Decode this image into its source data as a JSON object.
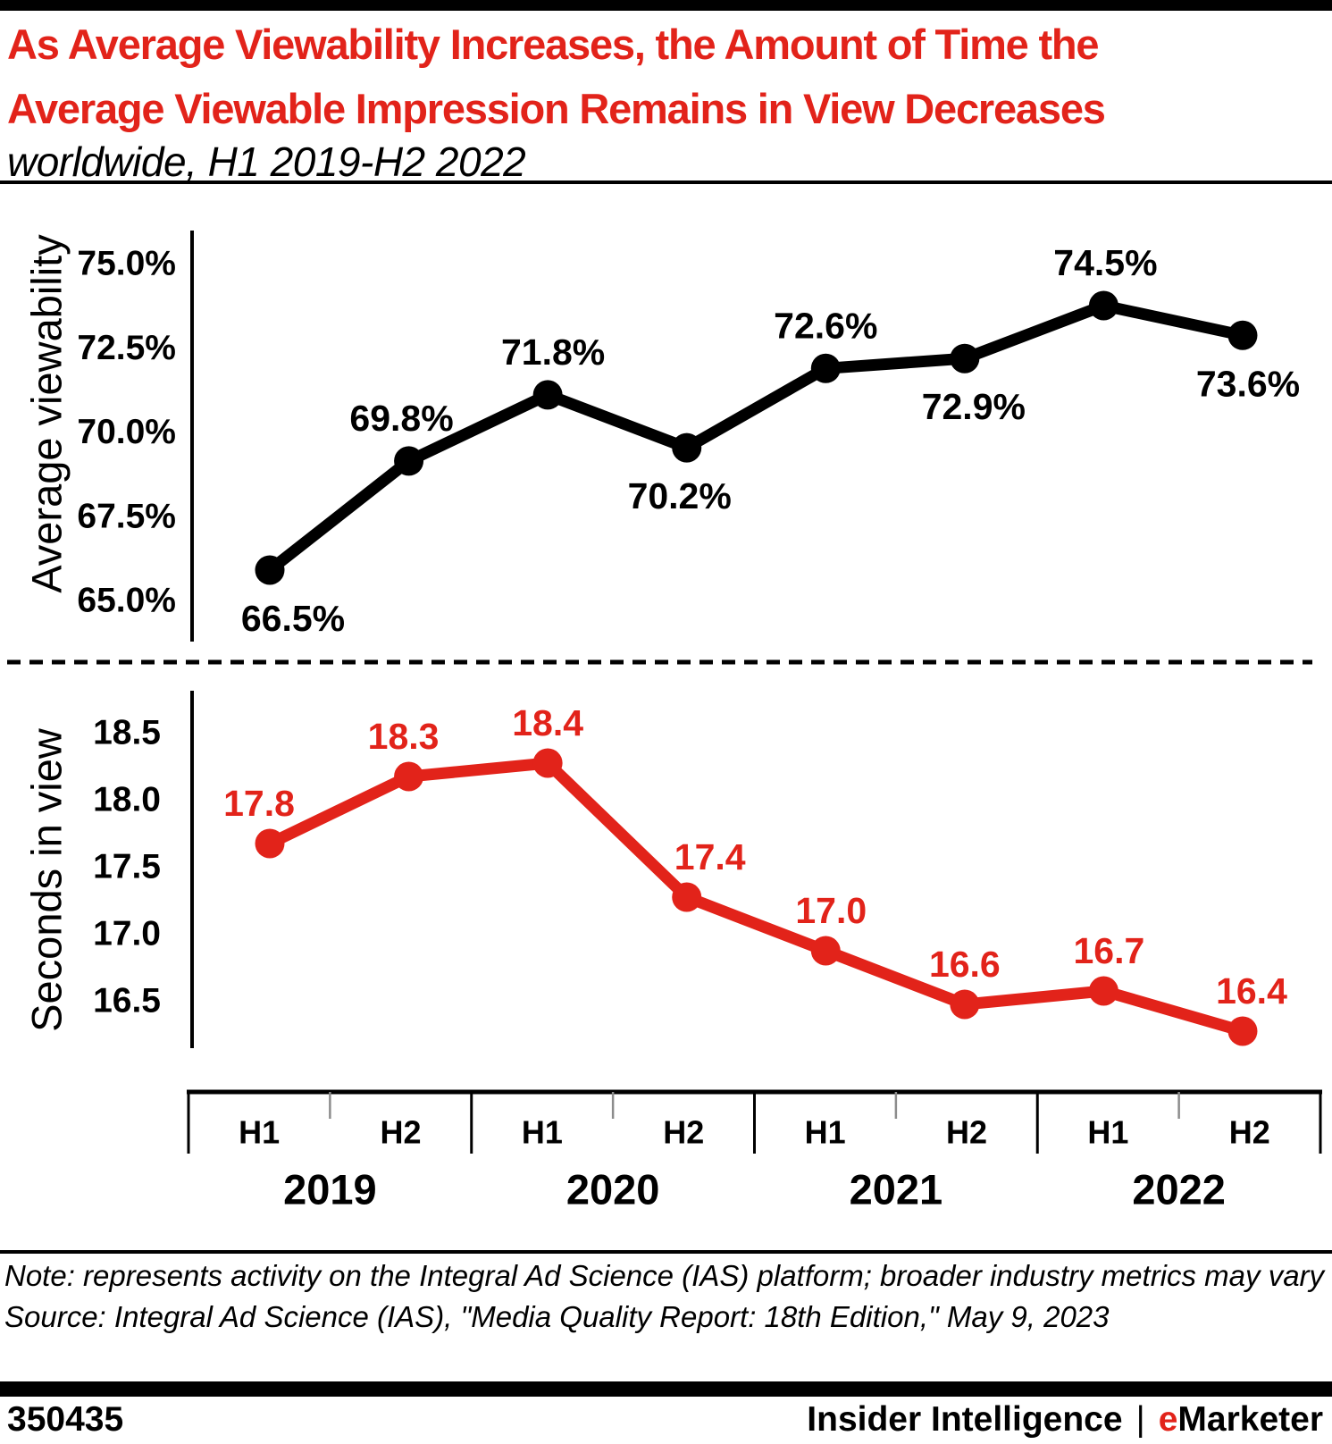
{
  "header": {
    "title_line1": "As Average Viewability Increases, the Amount of Time the",
    "title_line2": "Average Viewable Impression Remains in View Decreases",
    "subtitle": "worldwide, H1 2019-H2 2022",
    "title_color": "#e2231a"
  },
  "chart_data": [
    {
      "type": "line",
      "name": "average-viewability",
      "ylabel": "Average viewability",
      "color": "#000000",
      "categories": [
        "H1 2019",
        "H2 2019",
        "H1 2020",
        "H2 2020",
        "H1 2021",
        "H2 2021",
        "H1 2022",
        "H2 2022"
      ],
      "values": [
        66.5,
        69.8,
        71.8,
        70.2,
        72.6,
        72.9,
        74.5,
        73.6
      ],
      "point_labels": [
        "66.5%",
        "69.8%",
        "71.8%",
        "70.2%",
        "72.6%",
        "72.9%",
        "74.5%",
        "73.6%"
      ],
      "label_side": [
        "below",
        "above",
        "above",
        "below",
        "above",
        "below",
        "above",
        "below"
      ],
      "ytick_labels": [
        "75.0%",
        "72.5%",
        "70.0%",
        "67.5%",
        "65.0%"
      ],
      "ytick_values": [
        75.0,
        72.5,
        70.0,
        67.5,
        65.0
      ],
      "ylim": [
        65.0,
        75.0
      ],
      "grid": "off",
      "legend": "none"
    },
    {
      "type": "line",
      "name": "seconds-in-view",
      "ylabel": "Seconds in view",
      "color": "#e2231a",
      "categories": [
        "H1 2019",
        "H2 2019",
        "H1 2020",
        "H2 2020",
        "H1 2021",
        "H2 2021",
        "H1 2022",
        "H2 2022"
      ],
      "values": [
        17.8,
        18.3,
        18.4,
        17.4,
        17.0,
        16.6,
        16.7,
        16.4
      ],
      "point_labels": [
        "17.8",
        "18.3",
        "18.4",
        "17.4",
        "17.0",
        "16.6",
        "16.7",
        "16.4"
      ],
      "label_side": [
        "above",
        "above",
        "above",
        "above",
        "above",
        "above",
        "above",
        "above"
      ],
      "ytick_labels": [
        "18.5",
        "18.0",
        "17.5",
        "17.0",
        "16.5"
      ],
      "ytick_values": [
        18.5,
        18.0,
        17.5,
        17.0,
        16.5
      ],
      "ylim": [
        16.2,
        18.6
      ],
      "grid": "off",
      "legend": "none"
    }
  ],
  "xaxis": {
    "half_labels": [
      "H1",
      "H2",
      "H1",
      "H2",
      "H1",
      "H2",
      "H1",
      "H2"
    ],
    "year_labels": [
      "2019",
      "2020",
      "2021",
      "2022"
    ]
  },
  "notes": {
    "note": "Note: represents activity on the Integral Ad Science (IAS) platform; broader industry metrics may vary",
    "source": "Source: Integral Ad Science (IAS), \"Media Quality Report: 18th Edition,\" May 9, 2023"
  },
  "footer": {
    "chart_id": "350435",
    "brand_left": "Insider Intelligence",
    "brand_separator": "|",
    "brand_e": "e",
    "brand_rest": "Marketer"
  },
  "colors": {
    "accent_red": "#e2231a",
    "black": "#000000",
    "minor_tick_gray": "#8c8c8c"
  }
}
